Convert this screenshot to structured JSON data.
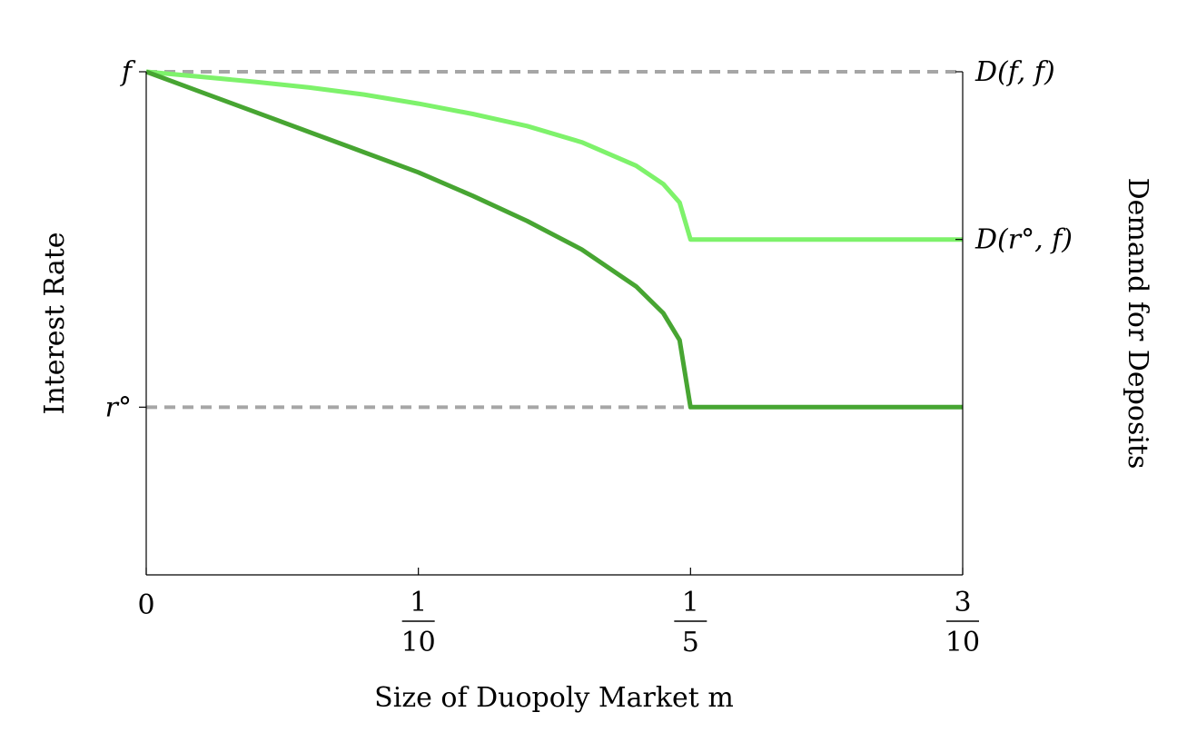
{
  "chart_data": {
    "type": "line",
    "xlabel": "Size of Duopoly Market m",
    "ylabel": "Interest Rate",
    "y2label": "Demand for Deposits",
    "xlim": [
      0,
      0.3
    ],
    "ylim": [
      -0.5,
      1
    ],
    "x_ticks": [
      {
        "value": 0,
        "num": "0",
        "den": ""
      },
      {
        "value": 0.1,
        "num": "1",
        "den": "10"
      },
      {
        "value": 0.2,
        "num": "1",
        "den": "5"
      },
      {
        "value": 0.3,
        "num": "3",
        "den": "10"
      }
    ],
    "y_ticks_left": [
      {
        "value": 1,
        "label": "f"
      },
      {
        "value": 0,
        "label": "r°"
      }
    ],
    "y_ticks_right": [
      {
        "value": 1,
        "label": "D(f, f)"
      },
      {
        "value": 0.5,
        "label": "D(r°, f)"
      }
    ],
    "reference_lines": [
      {
        "y": 1,
        "style": "dashed",
        "color": "#a6a6a6"
      },
      {
        "y": 0,
        "x_end": 0.2,
        "style": "dashed",
        "color": "#a6a6a6"
      }
    ],
    "series": [
      {
        "color": "#7ef26b",
        "points": [
          [
            0,
            1
          ],
          [
            0.02,
            0.985
          ],
          [
            0.04,
            0.97
          ],
          [
            0.06,
            0.953
          ],
          [
            0.08,
            0.932
          ],
          [
            0.1,
            0.905
          ],
          [
            0.12,
            0.874
          ],
          [
            0.14,
            0.838
          ],
          [
            0.16,
            0.79
          ],
          [
            0.18,
            0.72
          ],
          [
            0.19,
            0.665
          ],
          [
            0.196,
            0.61
          ],
          [
            0.2,
            0.5
          ],
          [
            0.3,
            0.5
          ]
        ]
      },
      {
        "color": "#47a532",
        "points": [
          [
            0,
            1
          ],
          [
            0.02,
            0.94
          ],
          [
            0.04,
            0.88
          ],
          [
            0.06,
            0.82
          ],
          [
            0.08,
            0.76
          ],
          [
            0.1,
            0.7
          ],
          [
            0.12,
            0.63
          ],
          [
            0.14,
            0.555
          ],
          [
            0.16,
            0.47
          ],
          [
            0.18,
            0.36
          ],
          [
            0.19,
            0.28
          ],
          [
            0.196,
            0.2
          ],
          [
            0.2,
            0
          ],
          [
            0.3,
            0
          ]
        ]
      }
    ]
  }
}
